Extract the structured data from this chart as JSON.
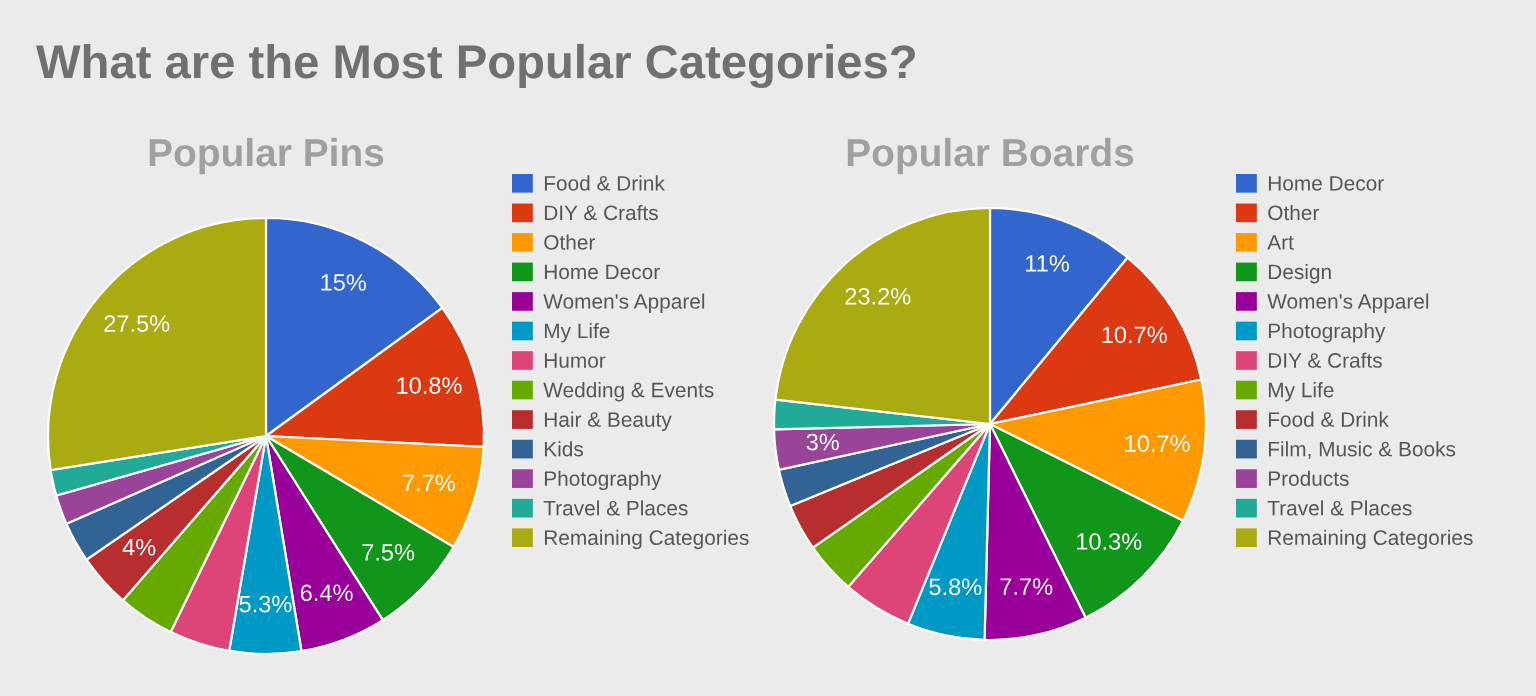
{
  "chart_data": [
    {
      "type": "pie",
      "title": "What are the Most Popular Categories?",
      "subtitle": "Popular Pins",
      "legend": "right",
      "categories": [
        "Food & Drink",
        "DIY & Crafts",
        "Other",
        "Home Decor",
        "Women's Apparel",
        "My Life",
        "Humor",
        "Wedding & Events",
        "Hair & Beauty",
        "Kids",
        "Photography",
        "Travel & Places",
        "Remaining Categories"
      ],
      "values": [
        15,
        10.8,
        7.7,
        7.5,
        6.4,
        5.3,
        4.5,
        4.2,
        4,
        3.0,
        2.2,
        1.9,
        27.5
      ],
      "value_labels": [
        "15%",
        "10.8%",
        "7.7%",
        "7.5%",
        "6.4%",
        "5.3%",
        null,
        null,
        "4%",
        null,
        null,
        null,
        "27.5%"
      ],
      "colors": [
        "#3366cc",
        "#dc3912",
        "#ff9900",
        "#109618",
        "#990099",
        "#0099c6",
        "#dd4477",
        "#66aa00",
        "#b82e2e",
        "#316395",
        "#994499",
        "#22aa99",
        "#aaaa11"
      ]
    },
    {
      "type": "pie",
      "subtitle": "Popular Boards",
      "legend": "right",
      "categories": [
        "Home Decor",
        "Other",
        "Art",
        "Design",
        "Women's Apparel",
        "Photography",
        "DIY & Crafts",
        "My Life",
        "Food & Drink",
        "Film, Music & Books",
        "Products",
        "Travel & Places",
        "Remaining Categories"
      ],
      "values": [
        11,
        10.7,
        10.7,
        10.3,
        7.7,
        5.8,
        5.2,
        3.9,
        3.5,
        2.8,
        3,
        2.2,
        23.2
      ],
      "value_labels": [
        "11%",
        "10.7%",
        "10.7%",
        "10.3%",
        "7.7%",
        "5.8%",
        null,
        null,
        null,
        null,
        "3%",
        null,
        "23.2%"
      ],
      "colors": [
        "#3366cc",
        "#dc3912",
        "#ff9900",
        "#109618",
        "#990099",
        "#0099c6",
        "#dd4477",
        "#66aa00",
        "#b82e2e",
        "#316395",
        "#994499",
        "#22aa99",
        "#aaaa11"
      ]
    }
  ]
}
